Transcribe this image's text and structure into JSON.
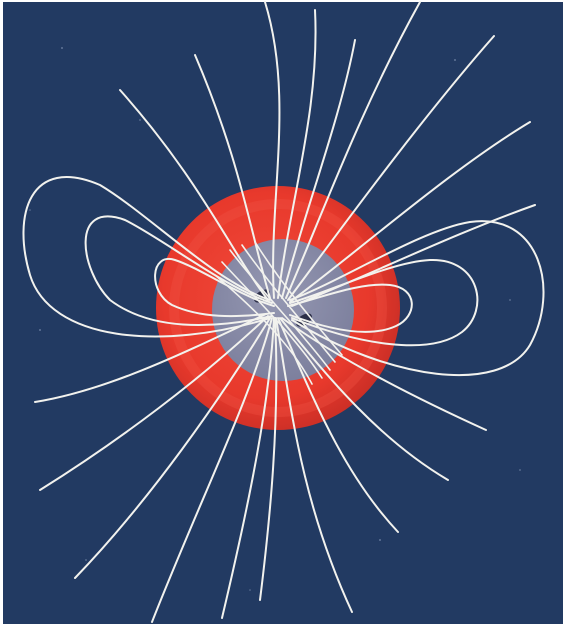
{
  "image": {
    "subject-icon": "magnetic-dipole-field-icon",
    "colors": {
      "background": "#223a62",
      "outer_shell": "#e8392c",
      "outer_shell_dark": "#c62d25",
      "core": "#878aa6",
      "field_lines": "#f2f2ee",
      "frame": "#ffffff"
    }
  }
}
